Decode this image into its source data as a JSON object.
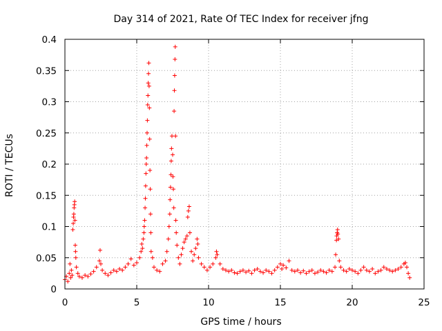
{
  "chart_data": {
    "type": "scatter",
    "title": "Day 314 of 2021, Rate Of TEC Index for receiver jfng",
    "xlabel": "GPS time / hours",
    "ylabel": "ROTI / TECUs",
    "xlim": [
      0,
      25
    ],
    "ylim": [
      0,
      0.4
    ],
    "xticks": [
      0,
      5,
      10,
      15,
      20,
      25
    ],
    "xtick_labels": [
      "0",
      "5",
      "10",
      "15",
      "20",
      "25"
    ],
    "yticks": [
      0,
      0.05,
      0.1,
      0.15,
      0.2,
      0.25,
      0.3,
      0.35,
      0.4
    ],
    "ytick_labels": [
      "0",
      "0.05",
      "0.1",
      "0.15",
      "0.2",
      "0.25",
      "0.3",
      "0.35",
      "0.4"
    ],
    "grid": true,
    "marker": "+",
    "color": "#ff0000",
    "series": [
      {
        "name": "ROTI",
        "points": [
          [
            0.0,
            0.015
          ],
          [
            0.1,
            0.02
          ],
          [
            0.2,
            0.012
          ],
          [
            0.3,
            0.025
          ],
          [
            0.35,
            0.04
          ],
          [
            0.4,
            0.018
          ],
          [
            0.45,
            0.03
          ],
          [
            0.5,
            0.022
          ],
          [
            0.55,
            0.095
          ],
          [
            0.58,
            0.105
          ],
          [
            0.6,
            0.115
          ],
          [
            0.62,
            0.12
          ],
          [
            0.64,
            0.13
          ],
          [
            0.66,
            0.135
          ],
          [
            0.68,
            0.14
          ],
          [
            0.7,
            0.11
          ],
          [
            0.72,
            0.07
          ],
          [
            0.74,
            0.06
          ],
          [
            0.76,
            0.05
          ],
          [
            0.8,
            0.035
          ],
          [
            0.9,
            0.025
          ],
          [
            1.0,
            0.02
          ],
          [
            1.2,
            0.018
          ],
          [
            1.4,
            0.022
          ],
          [
            1.6,
            0.02
          ],
          [
            1.8,
            0.024
          ],
          [
            2.0,
            0.028
          ],
          [
            2.2,
            0.035
          ],
          [
            2.4,
            0.045
          ],
          [
            2.45,
            0.062
          ],
          [
            2.5,
            0.04
          ],
          [
            2.6,
            0.03
          ],
          [
            2.8,
            0.025
          ],
          [
            3.0,
            0.022
          ],
          [
            3.2,
            0.026
          ],
          [
            3.4,
            0.03
          ],
          [
            3.6,
            0.028
          ],
          [
            3.8,
            0.032
          ],
          [
            4.0,
            0.03
          ],
          [
            4.2,
            0.035
          ],
          [
            4.4,
            0.04
          ],
          [
            4.6,
            0.048
          ],
          [
            4.8,
            0.038
          ],
          [
            5.0,
            0.042
          ],
          [
            5.2,
            0.05
          ],
          [
            5.3,
            0.06
          ],
          [
            5.35,
            0.072
          ],
          [
            5.4,
            0.065
          ],
          [
            5.45,
            0.08
          ],
          [
            5.5,
            0.09
          ],
          [
            5.52,
            0.1
          ],
          [
            5.55,
            0.11
          ],
          [
            5.58,
            0.13
          ],
          [
            5.6,
            0.145
          ],
          [
            5.62,
            0.165
          ],
          [
            5.64,
            0.185
          ],
          [
            5.66,
            0.2
          ],
          [
            5.68,
            0.21
          ],
          [
            5.7,
            0.23
          ],
          [
            5.72,
            0.25
          ],
          [
            5.74,
            0.27
          ],
          [
            5.76,
            0.295
          ],
          [
            5.78,
            0.31
          ],
          [
            5.8,
            0.33
          ],
          [
            5.82,
            0.345
          ],
          [
            5.84,
            0.362
          ],
          [
            5.86,
            0.325
          ],
          [
            5.88,
            0.29
          ],
          [
            5.9,
            0.24
          ],
          [
            5.92,
            0.19
          ],
          [
            5.94,
            0.16
          ],
          [
            5.96,
            0.12
          ],
          [
            5.98,
            0.09
          ],
          [
            6.0,
            0.06
          ],
          [
            6.1,
            0.05
          ],
          [
            6.2,
            0.035
          ],
          [
            6.4,
            0.03
          ],
          [
            6.6,
            0.028
          ],
          [
            6.8,
            0.04
          ],
          [
            7.0,
            0.045
          ],
          [
            7.1,
            0.06
          ],
          [
            7.2,
            0.08
          ],
          [
            7.25,
            0.1
          ],
          [
            7.3,
            0.12
          ],
          [
            7.32,
            0.143
          ],
          [
            7.35,
            0.163
          ],
          [
            7.38,
            0.183
          ],
          [
            7.4,
            0.205
          ],
          [
            7.42,
            0.225
          ],
          [
            7.45,
            0.245
          ],
          [
            7.5,
            0.215
          ],
          [
            7.52,
            0.18
          ],
          [
            7.55,
            0.16
          ],
          [
            7.58,
            0.13
          ],
          [
            7.6,
            0.285
          ],
          [
            7.62,
            0.318
          ],
          [
            7.64,
            0.342
          ],
          [
            7.66,
            0.368
          ],
          [
            7.68,
            0.388
          ],
          [
            7.7,
            0.245
          ],
          [
            7.72,
            0.11
          ],
          [
            7.75,
            0.09
          ],
          [
            7.8,
            0.07
          ],
          [
            7.9,
            0.05
          ],
          [
            8.0,
            0.04
          ],
          [
            8.1,
            0.055
          ],
          [
            8.2,
            0.065
          ],
          [
            8.3,
            0.075
          ],
          [
            8.4,
            0.08
          ],
          [
            8.5,
            0.085
          ],
          [
            8.55,
            0.115
          ],
          [
            8.6,
            0.125
          ],
          [
            8.65,
            0.132
          ],
          [
            8.7,
            0.09
          ],
          [
            8.8,
            0.06
          ],
          [
            8.9,
            0.045
          ],
          [
            9.0,
            0.055
          ],
          [
            9.1,
            0.065
          ],
          [
            9.2,
            0.08
          ],
          [
            9.25,
            0.072
          ],
          [
            9.3,
            0.05
          ],
          [
            9.5,
            0.04
          ],
          [
            9.7,
            0.035
          ],
          [
            9.9,
            0.03
          ],
          [
            10.1,
            0.035
          ],
          [
            10.3,
            0.04
          ],
          [
            10.5,
            0.05
          ],
          [
            10.55,
            0.06
          ],
          [
            10.6,
            0.055
          ],
          [
            10.8,
            0.04
          ],
          [
            11.0,
            0.032
          ],
          [
            11.2,
            0.03
          ],
          [
            11.4,
            0.028
          ],
          [
            11.6,
            0.03
          ],
          [
            11.8,
            0.026
          ],
          [
            12.0,
            0.025
          ],
          [
            12.2,
            0.028
          ],
          [
            12.4,
            0.03
          ],
          [
            12.6,
            0.027
          ],
          [
            12.8,
            0.029
          ],
          [
            13.0,
            0.025
          ],
          [
            13.2,
            0.03
          ],
          [
            13.4,
            0.032
          ],
          [
            13.6,
            0.028
          ],
          [
            13.8,
            0.026
          ],
          [
            14.0,
            0.03
          ],
          [
            14.2,
            0.028
          ],
          [
            14.4,
            0.025
          ],
          [
            14.6,
            0.03
          ],
          [
            14.8,
            0.035
          ],
          [
            15.0,
            0.04
          ],
          [
            15.1,
            0.032
          ],
          [
            15.2,
            0.038
          ],
          [
            15.4,
            0.034
          ],
          [
            15.6,
            0.045
          ],
          [
            15.8,
            0.03
          ],
          [
            16.0,
            0.028
          ],
          [
            16.2,
            0.03
          ],
          [
            16.4,
            0.026
          ],
          [
            16.6,
            0.029
          ],
          [
            16.8,
            0.025
          ],
          [
            17.0,
            0.028
          ],
          [
            17.2,
            0.03
          ],
          [
            17.4,
            0.025
          ],
          [
            17.6,
            0.027
          ],
          [
            17.8,
            0.03
          ],
          [
            18.0,
            0.028
          ],
          [
            18.2,
            0.026
          ],
          [
            18.4,
            0.03
          ],
          [
            18.6,
            0.028
          ],
          [
            18.8,
            0.035
          ],
          [
            18.85,
            0.055
          ],
          [
            18.9,
            0.078
          ],
          [
            18.92,
            0.085
          ],
          [
            18.95,
            0.09
          ],
          [
            18.98,
            0.095
          ],
          [
            19.0,
            0.088
          ],
          [
            19.05,
            0.08
          ],
          [
            19.1,
            0.045
          ],
          [
            19.2,
            0.035
          ],
          [
            19.4,
            0.03
          ],
          [
            19.6,
            0.028
          ],
          [
            19.8,
            0.032
          ],
          [
            20.0,
            0.03
          ],
          [
            20.2,
            0.028
          ],
          [
            20.4,
            0.025
          ],
          [
            20.6,
            0.03
          ],
          [
            20.8,
            0.035
          ],
          [
            21.0,
            0.03
          ],
          [
            21.2,
            0.028
          ],
          [
            21.4,
            0.032
          ],
          [
            21.6,
            0.025
          ],
          [
            21.8,
            0.028
          ],
          [
            22.0,
            0.03
          ],
          [
            22.2,
            0.035
          ],
          [
            22.4,
            0.032
          ],
          [
            22.6,
            0.03
          ],
          [
            22.8,
            0.028
          ],
          [
            23.0,
            0.03
          ],
          [
            23.2,
            0.032
          ],
          [
            23.4,
            0.035
          ],
          [
            23.6,
            0.04
          ],
          [
            23.7,
            0.042
          ],
          [
            23.8,
            0.035
          ],
          [
            23.9,
            0.025
          ],
          [
            24.0,
            0.018
          ]
        ]
      }
    ]
  }
}
